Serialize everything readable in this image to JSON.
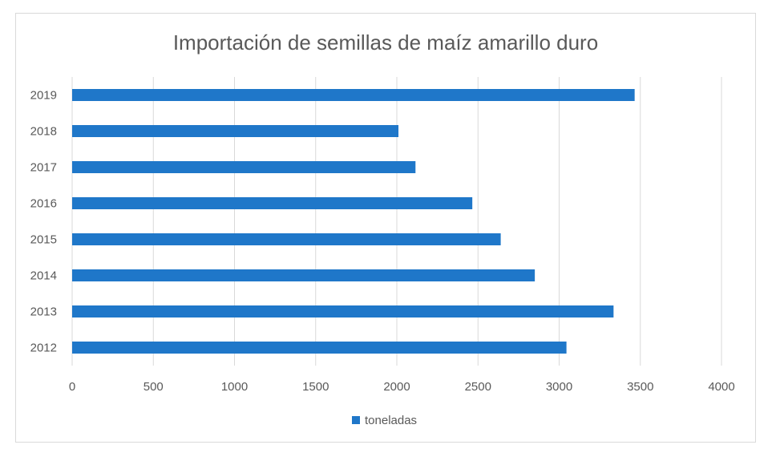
{
  "chart_data": {
    "type": "bar",
    "orientation": "horizontal",
    "title": "Importación de semillas de maíz amarillo duro",
    "categories": [
      "2012",
      "2013",
      "2014",
      "2015",
      "2016",
      "2017",
      "2018",
      "2019"
    ],
    "series": [
      {
        "name": "toneladas",
        "values": [
          3045,
          3335,
          2850,
          2640,
          2465,
          2115,
          2010,
          3465
        ]
      }
    ],
    "xticks": [
      0,
      500,
      1000,
      1500,
      2000,
      2500,
      3000,
      3500,
      4000
    ],
    "xlim": [
      0,
      4000
    ],
    "grid": "vertical",
    "legend_position": "bottom",
    "colors": {
      "bar": "#1f77c9",
      "grid": "#d9d9d9",
      "text": "#595959"
    }
  }
}
